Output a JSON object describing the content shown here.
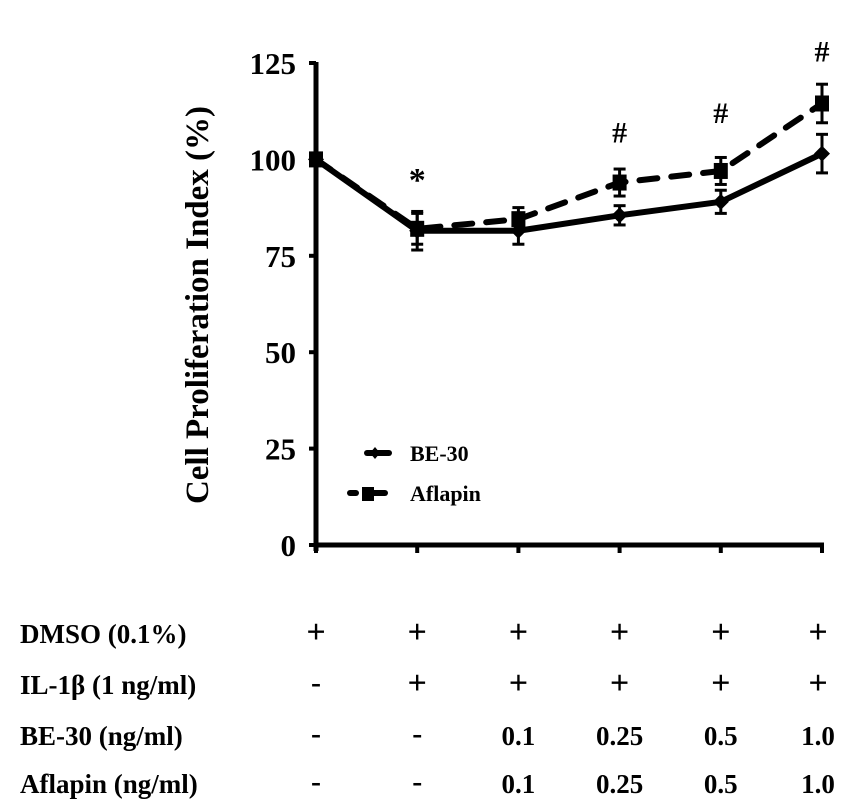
{
  "chart_data": {
    "type": "line",
    "title": "",
    "ylabel": "Cell Proliferation Index (%)",
    "xlabel": "",
    "ylim": [
      0,
      125
    ],
    "yticks": [
      0,
      25,
      50,
      75,
      100,
      125
    ],
    "ytick_labels": [
      "0",
      "25",
      "50",
      "75",
      "100",
      "125"
    ],
    "grid": false,
    "legend_position": "lower-left",
    "series": [
      {
        "name": "BE-30",
        "line_style": "solid",
        "marker": "diamond",
        "values": [
          100,
          81.5,
          81.5,
          85.5,
          89,
          101.5
        ],
        "errors": [
          0,
          5,
          3.5,
          2.5,
          3,
          5
        ]
      },
      {
        "name": "Aflapin",
        "line_style": "dashed",
        "marker": "square",
        "values": [
          100,
          82,
          84.5,
          94,
          97,
          114.5
        ],
        "errors": [
          0,
          4,
          3,
          3.5,
          3.5,
          5
        ]
      }
    ],
    "annotations": [
      {
        "group": 1,
        "text": "*",
        "value": 96
      },
      {
        "group": 3,
        "text": "#",
        "value": 107
      },
      {
        "group": 4,
        "text": "#",
        "value": 112
      },
      {
        "group": 5,
        "text": "#",
        "value": 128
      }
    ],
    "treatment_table": {
      "rows": [
        {
          "label": "DMSO (0.1%)",
          "cells": [
            "+",
            "+",
            "+",
            "+",
            "+",
            "+"
          ]
        },
        {
          "label": "IL-1β (1 ng/ml)",
          "cells": [
            "-",
            "+",
            "+",
            "+",
            "+",
            "+"
          ]
        },
        {
          "label": "BE-30 (ng/ml)",
          "cells": [
            "-",
            "-",
            "0.1",
            "0.25",
            "0.5",
            "1.0"
          ]
        },
        {
          "label": "Aflapin (ng/ml)",
          "cells": [
            "-",
            "-",
            "0.1",
            "0.25",
            "0.5",
            "1.0"
          ]
        }
      ]
    }
  }
}
